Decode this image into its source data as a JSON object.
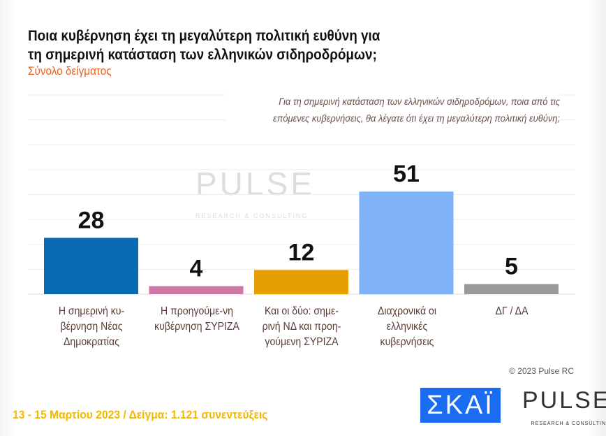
{
  "title_line1": "Ποια κυβέρνηση έχει τη μεγαλύτερη πολιτική ευθύνη για",
  "title_line2": "τη σημερινή κατάσταση των ελληνικών σιδηροδρόμων;",
  "subtitle": "Σύνολο δείγματος",
  "question_line1": "Για τη σημερινή κατάσταση των ελληνικών σιδηροδρόμων, ποια από τις",
  "question_line2": "επόμενες κυβερνήσεις, θα λέγατε ότι έχει τη μεγαλύτερη πολιτική ευθύνη;",
  "copyright": "© 2023 Pulse RC",
  "footer": "13 - 15  Μαρτίου  2023  /  Δείγμα:  1.121 συνεντεύξεις",
  "logos": {
    "skai": "ΣΚΑΪ",
    "pulse": "PULSE",
    "pulse_tag": "RESEARCH & CONSULTING"
  },
  "chart_data": {
    "type": "bar",
    "categories": [
      "Η σημερινή κυ-βέρνηση Νέας Δημοκρατίας",
      "Η προηγούμε-νη κυβέρνηση ΣΥΡΙΖΑ",
      "Και οι δύο: σημε-ρινή ΝΔ και προη-γούμενη ΣΥΡΙΖΑ",
      "Διαχρονικά οι ελληνικές κυβερνήσεις",
      "ΔΓ / ΔΑ"
    ],
    "values": [
      28,
      4,
      12,
      51,
      5
    ],
    "colors": [
      "#0a6ab1",
      "#cc79a7",
      "#e69f00",
      "#80b2f7",
      "#999999"
    ],
    "ylim": [
      0,
      99
    ],
    "grid": true
  }
}
